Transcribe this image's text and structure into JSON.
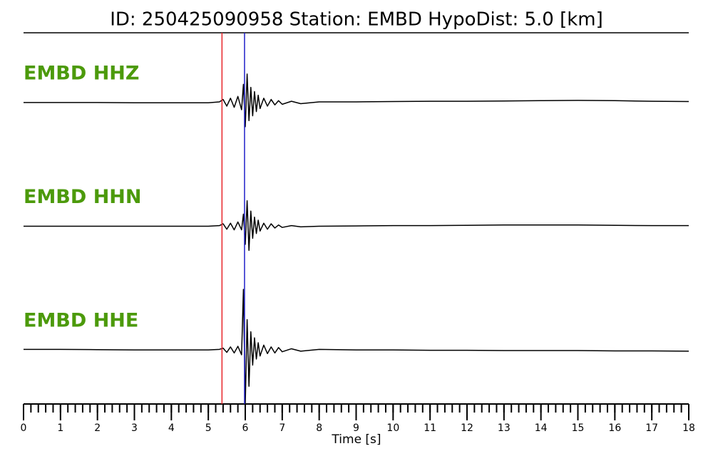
{
  "chart_data": {
    "type": "line",
    "title": "ID: 250425090958   Station: EMBD   HypoDist:     5.0 [km]",
    "xlabel": "Time [s]",
    "xlim": [
      0,
      18
    ],
    "xticks": [
      0,
      1,
      2,
      3,
      4,
      5,
      6,
      7,
      8,
      9,
      10,
      11,
      12,
      13,
      14,
      15,
      16,
      17,
      18
    ],
    "xminor_step": 0.2,
    "ylim": [
      -1,
      1
    ],
    "label_color": "#4c9a0b",
    "vlines": [
      {
        "value": 5.37,
        "color": "#e8242a"
      },
      {
        "value": 5.98,
        "color": "#1f1fc8"
      }
    ],
    "x": [
      0,
      1,
      2,
      3,
      4,
      5,
      5.3,
      5.4,
      5.5,
      5.6,
      5.7,
      5.8,
      5.9,
      5.95,
      6.0,
      6.05,
      6.1,
      6.15,
      6.2,
      6.25,
      6.3,
      6.35,
      6.4,
      6.5,
      6.6,
      6.7,
      6.8,
      6.9,
      7.0,
      7.25,
      7.5,
      8,
      9,
      10,
      11,
      12,
      13,
      14,
      15,
      16,
      17,
      18
    ],
    "series": [
      {
        "name": "EMBD HHZ",
        "color": "#000000",
        "values": [
          0,
          0,
          0,
          -0.005,
          -0.005,
          -0.005,
          0.01,
          0.05,
          -0.06,
          0.07,
          -0.08,
          0.1,
          -0.12,
          0.3,
          -0.4,
          0.47,
          -0.3,
          0.25,
          -0.22,
          0.18,
          -0.15,
          0.12,
          -0.1,
          0.07,
          -0.06,
          0.05,
          -0.04,
          0.03,
          -0.03,
          0.02,
          -0.02,
          0.01,
          0.01,
          0.015,
          0.02,
          0.02,
          0.025,
          0.03,
          0.035,
          0.03,
          0.02,
          0.015
        ]
      },
      {
        "name": "EMBD HHN",
        "color": "#000000",
        "values": [
          0,
          0,
          0,
          0,
          0,
          0,
          0.01,
          0.04,
          -0.05,
          0.05,
          -0.06,
          0.07,
          -0.06,
          0.2,
          -0.3,
          0.42,
          -0.4,
          0.25,
          -0.2,
          0.15,
          -0.12,
          0.1,
          -0.08,
          0.05,
          -0.05,
          0.04,
          -0.03,
          0.02,
          -0.02,
          0.01,
          -0.01,
          0,
          0.005,
          0.01,
          0.01,
          0.015,
          0.02,
          0.02,
          0.02,
          0.015,
          0.01,
          0.01
        ]
      },
      {
        "name": "EMBD HHE",
        "color": "#000000",
        "values": [
          0.01,
          0.01,
          0.005,
          0,
          0,
          0,
          0.01,
          0.03,
          -0.04,
          0.05,
          -0.05,
          0.06,
          -0.08,
          1.0,
          -0.9,
          0.5,
          -0.6,
          0.3,
          -0.25,
          0.2,
          -0.15,
          0.12,
          -0.1,
          0.08,
          -0.06,
          0.05,
          -0.05,
          0.04,
          -0.03,
          0.02,
          -0.02,
          0.01,
          0,
          0,
          -0.005,
          -0.005,
          -0.01,
          -0.01,
          -0.01,
          -0.015,
          -0.015,
          -0.02
        ]
      }
    ]
  }
}
